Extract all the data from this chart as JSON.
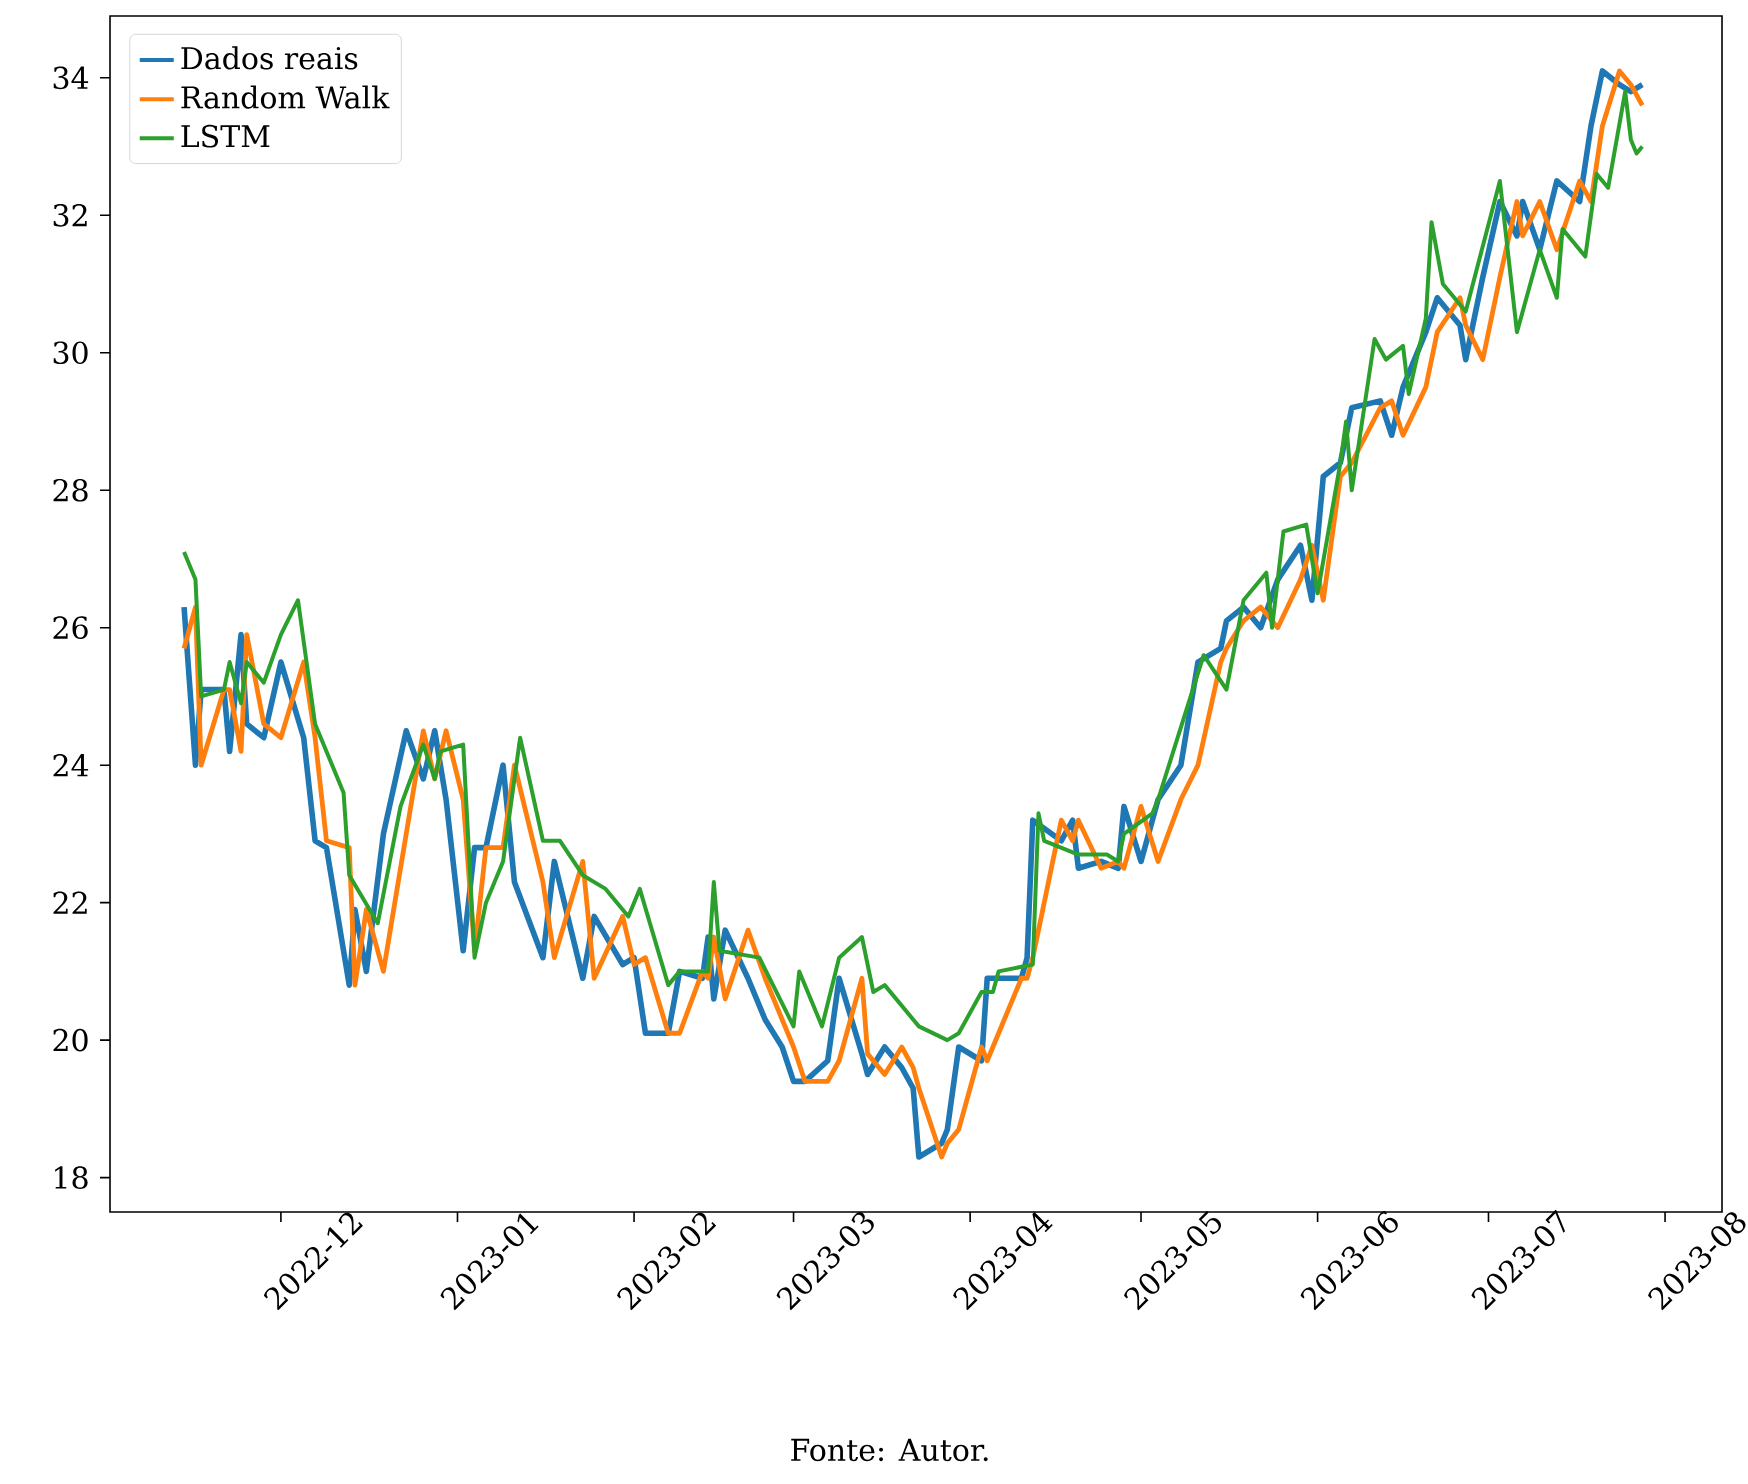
{
  "chart_data": {
    "type": "line",
    "annotations": [
      "Fonte: Autor."
    ],
    "x": [
      "2022-11-14",
      "2022-11-16",
      "2022-11-17",
      "2022-11-21",
      "2022-11-22",
      "2022-11-24",
      "2022-11-25",
      "2022-11-28",
      "2022-12-01",
      "2022-12-05",
      "2022-12-07",
      "2022-12-09",
      "2022-12-13",
      "2022-12-14",
      "2022-12-16",
      "2022-12-19",
      "2022-12-23",
      "2022-12-26",
      "2022-12-28",
      "2022-12-30",
      "2023-01-02",
      "2023-01-04",
      "2023-01-06",
      "2023-01-09",
      "2023-01-11",
      "2023-01-16",
      "2023-01-18",
      "2023-01-23",
      "2023-01-25",
      "2023-01-30",
      "2023-02-01",
      "2023-02-03",
      "2023-02-07",
      "2023-02-09",
      "2023-02-13",
      "2023-02-14",
      "2023-02-15",
      "2023-02-17",
      "2023-02-21",
      "2023-02-24",
      "2023-02-27",
      "2023-03-01",
      "2023-03-03",
      "2023-03-07",
      "2023-03-09",
      "2023-03-13",
      "2023-03-14",
      "2023-03-17",
      "2023-03-20",
      "2023-03-22",
      "2023-03-23",
      "2023-03-27",
      "2023-03-28",
      "2023-03-30",
      "2023-04-03",
      "2023-04-04",
      "2023-04-10",
      "2023-04-11",
      "2023-04-12",
      "2023-04-17",
      "2023-04-19",
      "2023-04-20",
      "2023-04-24",
      "2023-04-27",
      "2023-04-28",
      "2023-05-01",
      "2023-05-04",
      "2023-05-08",
      "2023-05-11",
      "2023-05-15",
      "2023-05-16",
      "2023-05-19",
      "2023-05-22",
      "2023-05-25",
      "2023-05-29",
      "2023-05-31",
      "2023-06-02",
      "2023-06-05",
      "2023-06-07",
      "2023-06-12",
      "2023-06-14",
      "2023-06-16",
      "2023-06-20",
      "2023-06-22",
      "2023-06-26",
      "2023-06-27",
      "2023-06-30",
      "2023-07-03",
      "2023-07-06",
      "2023-07-07",
      "2023-07-10",
      "2023-07-13",
      "2023-07-17",
      "2023-07-19",
      "2023-07-21",
      "2023-07-24",
      "2023-07-26",
      "2023-07-28"
    ],
    "series": [
      {
        "name": "Dados reais",
        "color": "#1f77b4",
        "values": [
          26.3,
          24.0,
          25.1,
          25.1,
          24.2,
          25.9,
          24.6,
          24.4,
          25.5,
          24.4,
          22.9,
          22.8,
          20.8,
          21.9,
          21.0,
          23.0,
          24.5,
          23.8,
          24.5,
          23.5,
          21.3,
          22.8,
          22.8,
          24.0,
          22.3,
          21.2,
          22.6,
          20.9,
          21.8,
          21.1,
          21.2,
          20.1,
          20.1,
          21.0,
          20.9,
          21.5,
          20.6,
          21.6,
          20.9,
          20.3,
          19.9,
          19.4,
          19.4,
          19.7,
          20.9,
          19.8,
          19.5,
          19.9,
          19.6,
          19.3,
          18.3,
          18.5,
          18.7,
          19.9,
          19.7,
          20.9,
          20.9,
          21.2,
          23.2,
          22.9,
          23.2,
          22.5,
          22.6,
          22.5,
          23.4,
          22.6,
          23.5,
          24.0,
          25.5,
          25.7,
          26.1,
          26.3,
          26.0,
          26.7,
          27.2,
          26.4,
          28.2,
          28.4,
          29.2,
          29.3,
          28.8,
          29.5,
          30.3,
          30.8,
          30.4,
          29.9,
          31.1,
          32.2,
          31.7,
          32.2,
          31.5,
          32.5,
          32.2,
          33.3,
          34.1,
          33.9,
          33.8,
          33.9
        ]
      },
      {
        "name": "Random Walk",
        "color": "#ff7f0e",
        "values": [
          25.7,
          26.3,
          24.0,
          25.1,
          25.1,
          24.2,
          25.9,
          24.6,
          24.4,
          25.5,
          24.4,
          22.9,
          22.8,
          20.8,
          21.9,
          21.0,
          23.0,
          24.5,
          23.8,
          24.5,
          23.5,
          21.3,
          22.8,
          22.8,
          24.0,
          22.3,
          21.2,
          22.6,
          20.9,
          21.8,
          21.1,
          21.2,
          20.1,
          20.1,
          21.0,
          20.9,
          21.5,
          20.6,
          21.6,
          20.9,
          20.3,
          19.9,
          19.4,
          19.4,
          19.7,
          20.9,
          19.8,
          19.5,
          19.9,
          19.6,
          19.3,
          18.3,
          18.5,
          18.7,
          19.9,
          19.7,
          20.9,
          20.9,
          21.2,
          23.2,
          22.9,
          23.2,
          22.5,
          22.6,
          22.5,
          23.4,
          22.6,
          23.5,
          24.0,
          25.5,
          25.7,
          26.1,
          26.3,
          26.0,
          26.7,
          27.2,
          26.4,
          28.2,
          28.4,
          29.2,
          29.3,
          28.8,
          29.5,
          30.3,
          30.8,
          30.4,
          29.9,
          31.1,
          32.2,
          31.7,
          32.2,
          31.5,
          32.5,
          32.2,
          33.3,
          34.1,
          33.9,
          33.6
        ]
      },
      {
        "name": "LSTM",
        "color": "#2ca02c",
        "x": [
          "2022-11-14",
          "2022-11-16",
          "2022-11-17",
          "2022-11-21",
          "2022-11-22",
          "2022-11-24",
          "2022-11-25",
          "2022-11-28",
          "2022-12-01",
          "2022-12-04",
          "2022-12-07",
          "2022-12-12",
          "2022-12-13",
          "2022-12-18",
          "2022-12-22",
          "2022-12-26",
          "2022-12-28",
          "2022-12-29",
          "2023-01-02",
          "2023-01-04",
          "2023-01-06",
          "2023-01-09",
          "2023-01-12",
          "2023-01-16",
          "2023-01-19",
          "2023-01-23",
          "2023-01-27",
          "2023-01-31",
          "2023-02-02",
          "2023-02-07",
          "2023-02-09",
          "2023-02-14",
          "2023-02-15",
          "2023-02-16",
          "2023-02-23",
          "2023-03-01",
          "2023-03-02",
          "2023-03-06",
          "2023-03-09",
          "2023-03-13",
          "2023-03-15",
          "2023-03-17",
          "2023-03-23",
          "2023-03-28",
          "2023-03-30",
          "2023-04-03",
          "2023-04-05",
          "2023-04-06",
          "2023-04-12",
          "2023-04-13",
          "2023-04-14",
          "2023-04-20",
          "2023-04-25",
          "2023-04-27",
          "2023-04-28",
          "2023-05-03",
          "2023-05-04",
          "2023-05-12",
          "2023-05-16",
          "2023-05-19",
          "2023-05-23",
          "2023-05-24",
          "2023-05-26",
          "2023-05-30",
          "2023-06-01",
          "2023-06-05",
          "2023-06-06",
          "2023-06-07",
          "2023-06-11",
          "2023-06-13",
          "2023-06-16",
          "2023-06-17",
          "2023-06-20",
          "2023-06-21",
          "2023-06-23",
          "2023-06-27",
          "2023-07-03",
          "2023-07-06",
          "2023-07-10",
          "2023-07-13",
          "2023-07-14",
          "2023-07-18",
          "2023-07-20",
          "2023-07-22",
          "2023-07-25",
          "2023-07-26",
          "2023-07-27",
          "2023-07-28"
        ],
        "values": [
          27.1,
          26.7,
          25.0,
          25.1,
          25.5,
          24.9,
          25.5,
          25.2,
          25.9,
          26.4,
          24.6,
          23.6,
          22.4,
          21.7,
          23.4,
          24.3,
          23.8,
          24.2,
          24.3,
          21.2,
          22.0,
          22.6,
          24.4,
          22.9,
          22.9,
          22.4,
          22.2,
          21.8,
          22.2,
          20.8,
          21.0,
          21.0,
          22.3,
          21.3,
          21.2,
          20.2,
          21.0,
          20.2,
          21.2,
          21.5,
          20.7,
          20.8,
          20.2,
          20.0,
          20.1,
          20.7,
          20.7,
          21.0,
          21.1,
          23.3,
          22.9,
          22.7,
          22.7,
          22.6,
          23.0,
          23.3,
          23.5,
          25.6,
          25.1,
          26.4,
          26.8,
          26.0,
          27.4,
          27.5,
          26.5,
          28.4,
          29.0,
          28.0,
          30.2,
          29.9,
          30.1,
          29.4,
          30.5,
          31.9,
          31.0,
          30.6,
          32.5,
          30.3,
          31.5,
          30.8,
          31.8,
          31.4,
          32.6,
          32.4,
          33.8,
          33.1,
          32.9,
          33.0
        ]
      }
    ],
    "xlim": [
      "2022-11-01",
      "2023-08-11"
    ],
    "xticks": [
      {
        "value": "2022-12-01",
        "label": "2022-12"
      },
      {
        "value": "2023-01-01",
        "label": "2023-01"
      },
      {
        "value": "2023-02-01",
        "label": "2023-02"
      },
      {
        "value": "2023-03-01",
        "label": "2023-03"
      },
      {
        "value": "2023-04-01",
        "label": "2023-04"
      },
      {
        "value": "2023-05-01",
        "label": "2023-05"
      },
      {
        "value": "2023-06-01",
        "label": "2023-06"
      },
      {
        "value": "2023-07-01",
        "label": "2023-07"
      },
      {
        "value": "2023-08-01",
        "label": "2023-08"
      }
    ],
    "ylim": [
      17.5,
      34.9
    ],
    "yticks": [
      18,
      20,
      22,
      24,
      26,
      28,
      30,
      32,
      34
    ],
    "legend": "top left",
    "grid": false
  }
}
